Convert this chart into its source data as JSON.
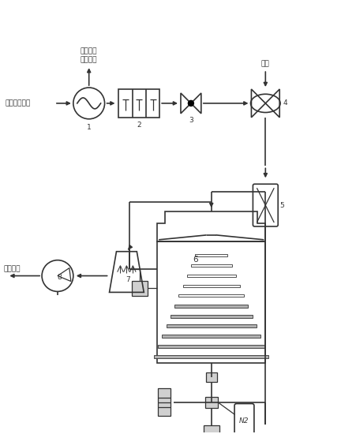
{
  "bg_color": "#ffffff",
  "line_color": "#333333",
  "gray_fill": "#b0b0b0",
  "light_gray": "#d0d0d0",
  "labels": {
    "input_gas": "含苯系物废气",
    "heat_recovery": "剩余热量\n回收利用",
    "air": "空气",
    "atmosphere": "大气环境",
    "n2": "N2",
    "1": "1",
    "2": "2",
    "3": "3",
    "4": "4",
    "5": "5",
    "6": "6",
    "7": "7",
    "8": "8"
  },
  "figsize": [
    4.51,
    5.5
  ],
  "dpi": 100
}
